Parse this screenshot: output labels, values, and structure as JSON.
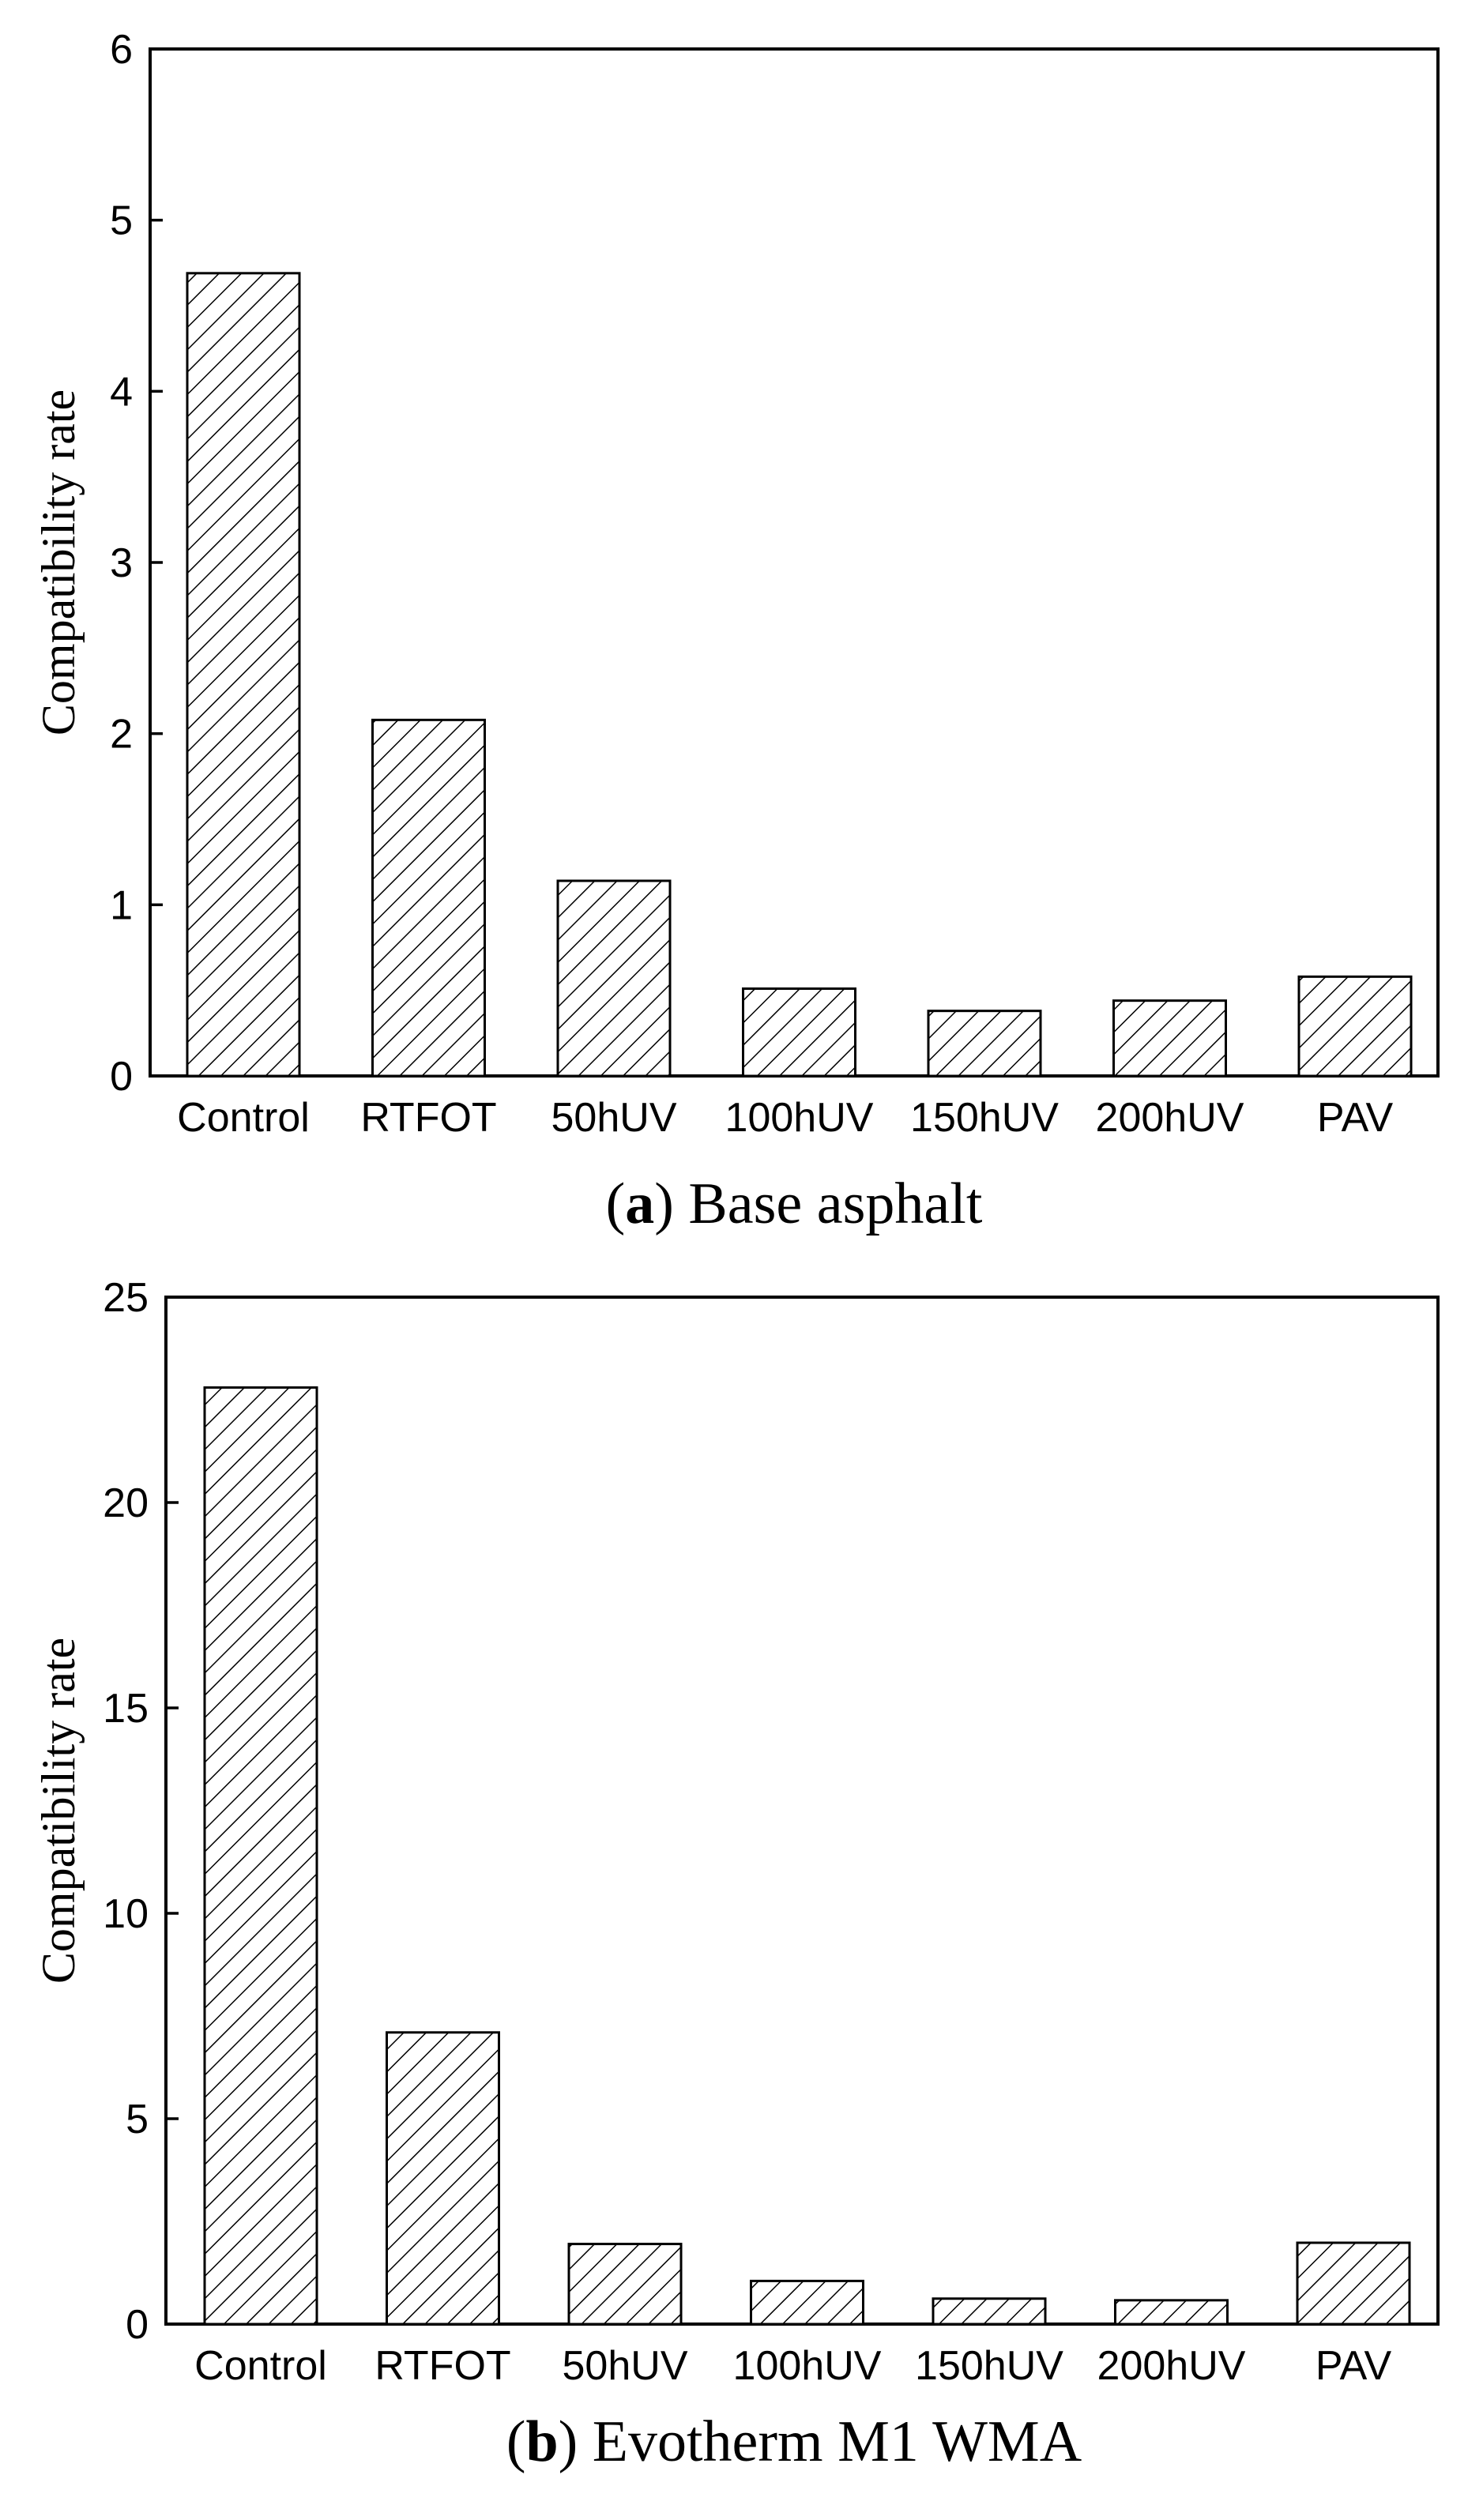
{
  "chart_data": [
    {
      "type": "bar",
      "caption_letter": "a",
      "caption_text": "Base asphalt",
      "ylabel": "Compatibility rate",
      "xlabel": "",
      "ylim": [
        0,
        6
      ],
      "yticks": [
        0,
        1,
        2,
        3,
        4,
        5,
        6
      ],
      "categories": [
        "Control",
        "RTFOT",
        "50hUV",
        "100hUV",
        "150hUV",
        "200hUV",
        "PAV"
      ],
      "values": [
        4.69,
        2.08,
        1.14,
        0.51,
        0.38,
        0.44,
        0.58
      ],
      "bar_fill": "diagonal-hatch",
      "grid": false,
      "legend": "none"
    },
    {
      "type": "bar",
      "caption_letter": "b",
      "caption_text": "Evotherm M1 WMA",
      "ylabel": "Compatibility rate",
      "xlabel": "",
      "ylim": [
        0,
        25
      ],
      "yticks": [
        0,
        5,
        10,
        15,
        20,
        25
      ],
      "categories": [
        "Control",
        "RTFOT",
        "50hUV",
        "100hUV",
        "150hUV",
        "200hUV",
        "PAV"
      ],
      "values": [
        22.8,
        7.1,
        1.95,
        1.05,
        0.62,
        0.58,
        1.98
      ],
      "bar_fill": "diagonal-hatch",
      "grid": false,
      "legend": "none"
    }
  ],
  "colors": {
    "ink": "#000000",
    "background": "#ffffff"
  }
}
